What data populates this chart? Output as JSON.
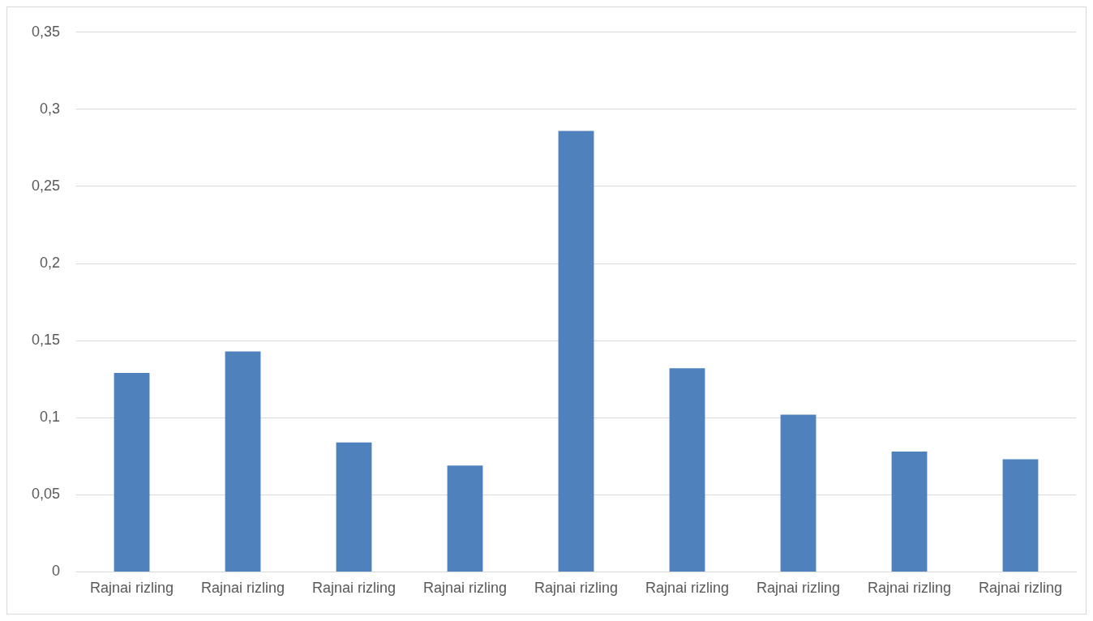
{
  "chart_data": {
    "type": "bar",
    "categories": [
      "Rajnai rizling",
      "Rajnai rizling",
      "Rajnai rizling",
      "Rajnai rizling",
      "Rajnai rizling",
      "Rajnai rizling",
      "Rajnai rizling",
      "Rajnai rizling",
      "Rajnai rizling"
    ],
    "values": [
      0.129,
      0.143,
      0.084,
      0.069,
      0.286,
      0.132,
      0.102,
      0.078,
      0.073
    ],
    "color": "#4f81bd",
    "ylim": [
      0,
      0.35
    ],
    "yticks": [
      0,
      {
        "value": 0.05,
        "label": "0,05"
      },
      {
        "value": 0.1,
        "label": "0,1"
      },
      {
        "value": 0.15,
        "label": "0,15"
      },
      {
        "value": 0.2,
        "label": "0,2"
      },
      {
        "value": 0.25,
        "label": "0,25"
      },
      {
        "value": 0.3,
        "label": "0,3"
      },
      {
        "value": 0.35,
        "label": "0,35"
      }
    ],
    "grid": "y"
  }
}
